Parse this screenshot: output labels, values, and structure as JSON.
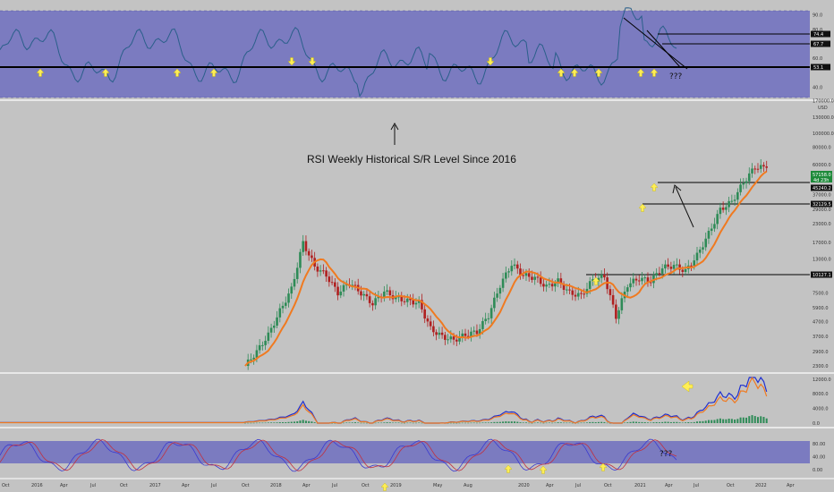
{
  "colors": {
    "background": "#c3c3c3",
    "band": "#7b7bc0",
    "rsi_line": "#2a5f8a",
    "ma_line": "#f07a20",
    "up_candle": "#2e8b57",
    "down_candle": "#b02020",
    "macd_line": "#1f2fd0",
    "signal_line": "#f07a20",
    "histogram": "#2e8b57",
    "arrow_yellow": "#ffee55",
    "price_tag_green": "#1e8a3a",
    "tag_black": "#111111",
    "stoch_k": "#3a3ad0",
    "stoch_d": "#c03040"
  },
  "annotation": {
    "main_text": "RSI Weekly Historical S/R Level Since 2016",
    "question_top": "???",
    "question_bottom": "???"
  },
  "rsi_panel": {
    "ticks": [
      "90.0",
      "80.0",
      "60.0",
      "40.0"
    ],
    "level_tags": [
      "74.4",
      "67.7",
      "53.1"
    ]
  },
  "price_panel": {
    "ticks": [
      "170000.0",
      "130000.0",
      "100000.0",
      "80000.0",
      "60000.0",
      "37000.0",
      "29000.0",
      "23000.0",
      "17000.0",
      "13000.0",
      "7500.0",
      "5900.0",
      "4700.0",
      "3700.0",
      "2900.0",
      "2300.0"
    ],
    "currency": "USD",
    "current_price": "57158.0",
    "current_time": "4d 23h",
    "level_tags": [
      "45240.2",
      "32129.5",
      "10127.1"
    ]
  },
  "macd_panel": {
    "ticks": [
      "12000.0",
      "8000.0",
      "4000.0",
      "0.0"
    ]
  },
  "stoch_panel": {
    "ticks": [
      "80.00",
      "40.00",
      "0.00"
    ]
  },
  "x_axis": {
    "labels": [
      "Oct",
      "2016",
      "Apr",
      "Jul",
      "Oct",
      "2017",
      "Apr",
      "Jul",
      "Oct",
      "2018",
      "Apr",
      "Jul",
      "Oct",
      "2019",
      "May",
      "Aug",
      "2020",
      "Apr",
      "Jul",
      "Oct",
      "2021",
      "Apr",
      "Jul",
      "Oct",
      "2022",
      "Apr"
    ]
  },
  "chart_data": {
    "type": "candlestick",
    "title": "",
    "interval": "weekly",
    "price_scale": "log",
    "price_series": [
      [
        "2017-07",
        2300
      ],
      [
        "2017-08",
        2900
      ],
      [
        "2017-09",
        3800
      ],
      [
        "2017-10",
        5600
      ],
      [
        "2017-11",
        8000
      ],
      [
        "2017-12",
        17000
      ],
      [
        "2018-01",
        11500
      ],
      [
        "2018-02",
        10000
      ],
      [
        "2018-03",
        7500
      ],
      [
        "2018-04",
        8900
      ],
      [
        "2018-05",
        7500
      ],
      [
        "2018-06",
        6300
      ],
      [
        "2018-07",
        7700
      ],
      [
        "2018-08",
        6900
      ],
      [
        "2018-09",
        6600
      ],
      [
        "2018-10",
        6400
      ],
      [
        "2018-11",
        4200
      ],
      [
        "2018-12",
        3700
      ],
      [
        "2019-01",
        3500
      ],
      [
        "2019-02",
        3800
      ],
      [
        "2019-03",
        4000
      ],
      [
        "2019-04",
        5200
      ],
      [
        "2019-05",
        8500
      ],
      [
        "2019-06",
        12000
      ],
      [
        "2019-07",
        10000
      ],
      [
        "2019-08",
        9600
      ],
      [
        "2019-09",
        8300
      ],
      [
        "2019-10",
        9100
      ],
      [
        "2019-11",
        7500
      ],
      [
        "2019-12",
        7200
      ],
      [
        "2020-01",
        9300
      ],
      [
        "2020-02",
        9800
      ],
      [
        "2020-03",
        5100
      ],
      [
        "2020-04",
        8600
      ],
      [
        "2020-05",
        9500
      ],
      [
        "2020-06",
        9100
      ],
      [
        "2020-07",
        11300
      ],
      [
        "2020-08",
        11700
      ],
      [
        "2020-09",
        10700
      ],
      [
        "2020-10",
        13800
      ],
      [
        "2020-11",
        19700
      ],
      [
        "2020-12",
        29000
      ],
      [
        "2021-01",
        33000
      ],
      [
        "2021-02",
        45000
      ],
      [
        "2021-03",
        58000
      ],
      [
        "2021-04",
        57158
      ]
    ],
    "ma_series_name": "",
    "rsi_levels": [
      74.4,
      67.7,
      53.1
    ],
    "price_levels": [
      45240.2,
      32129.5,
      10127.1
    ],
    "rsi_ylim": [
      33,
      93
    ],
    "macd_ylim": [
      0,
      12000
    ],
    "stoch_ylim": [
      -10,
      100
    ]
  }
}
